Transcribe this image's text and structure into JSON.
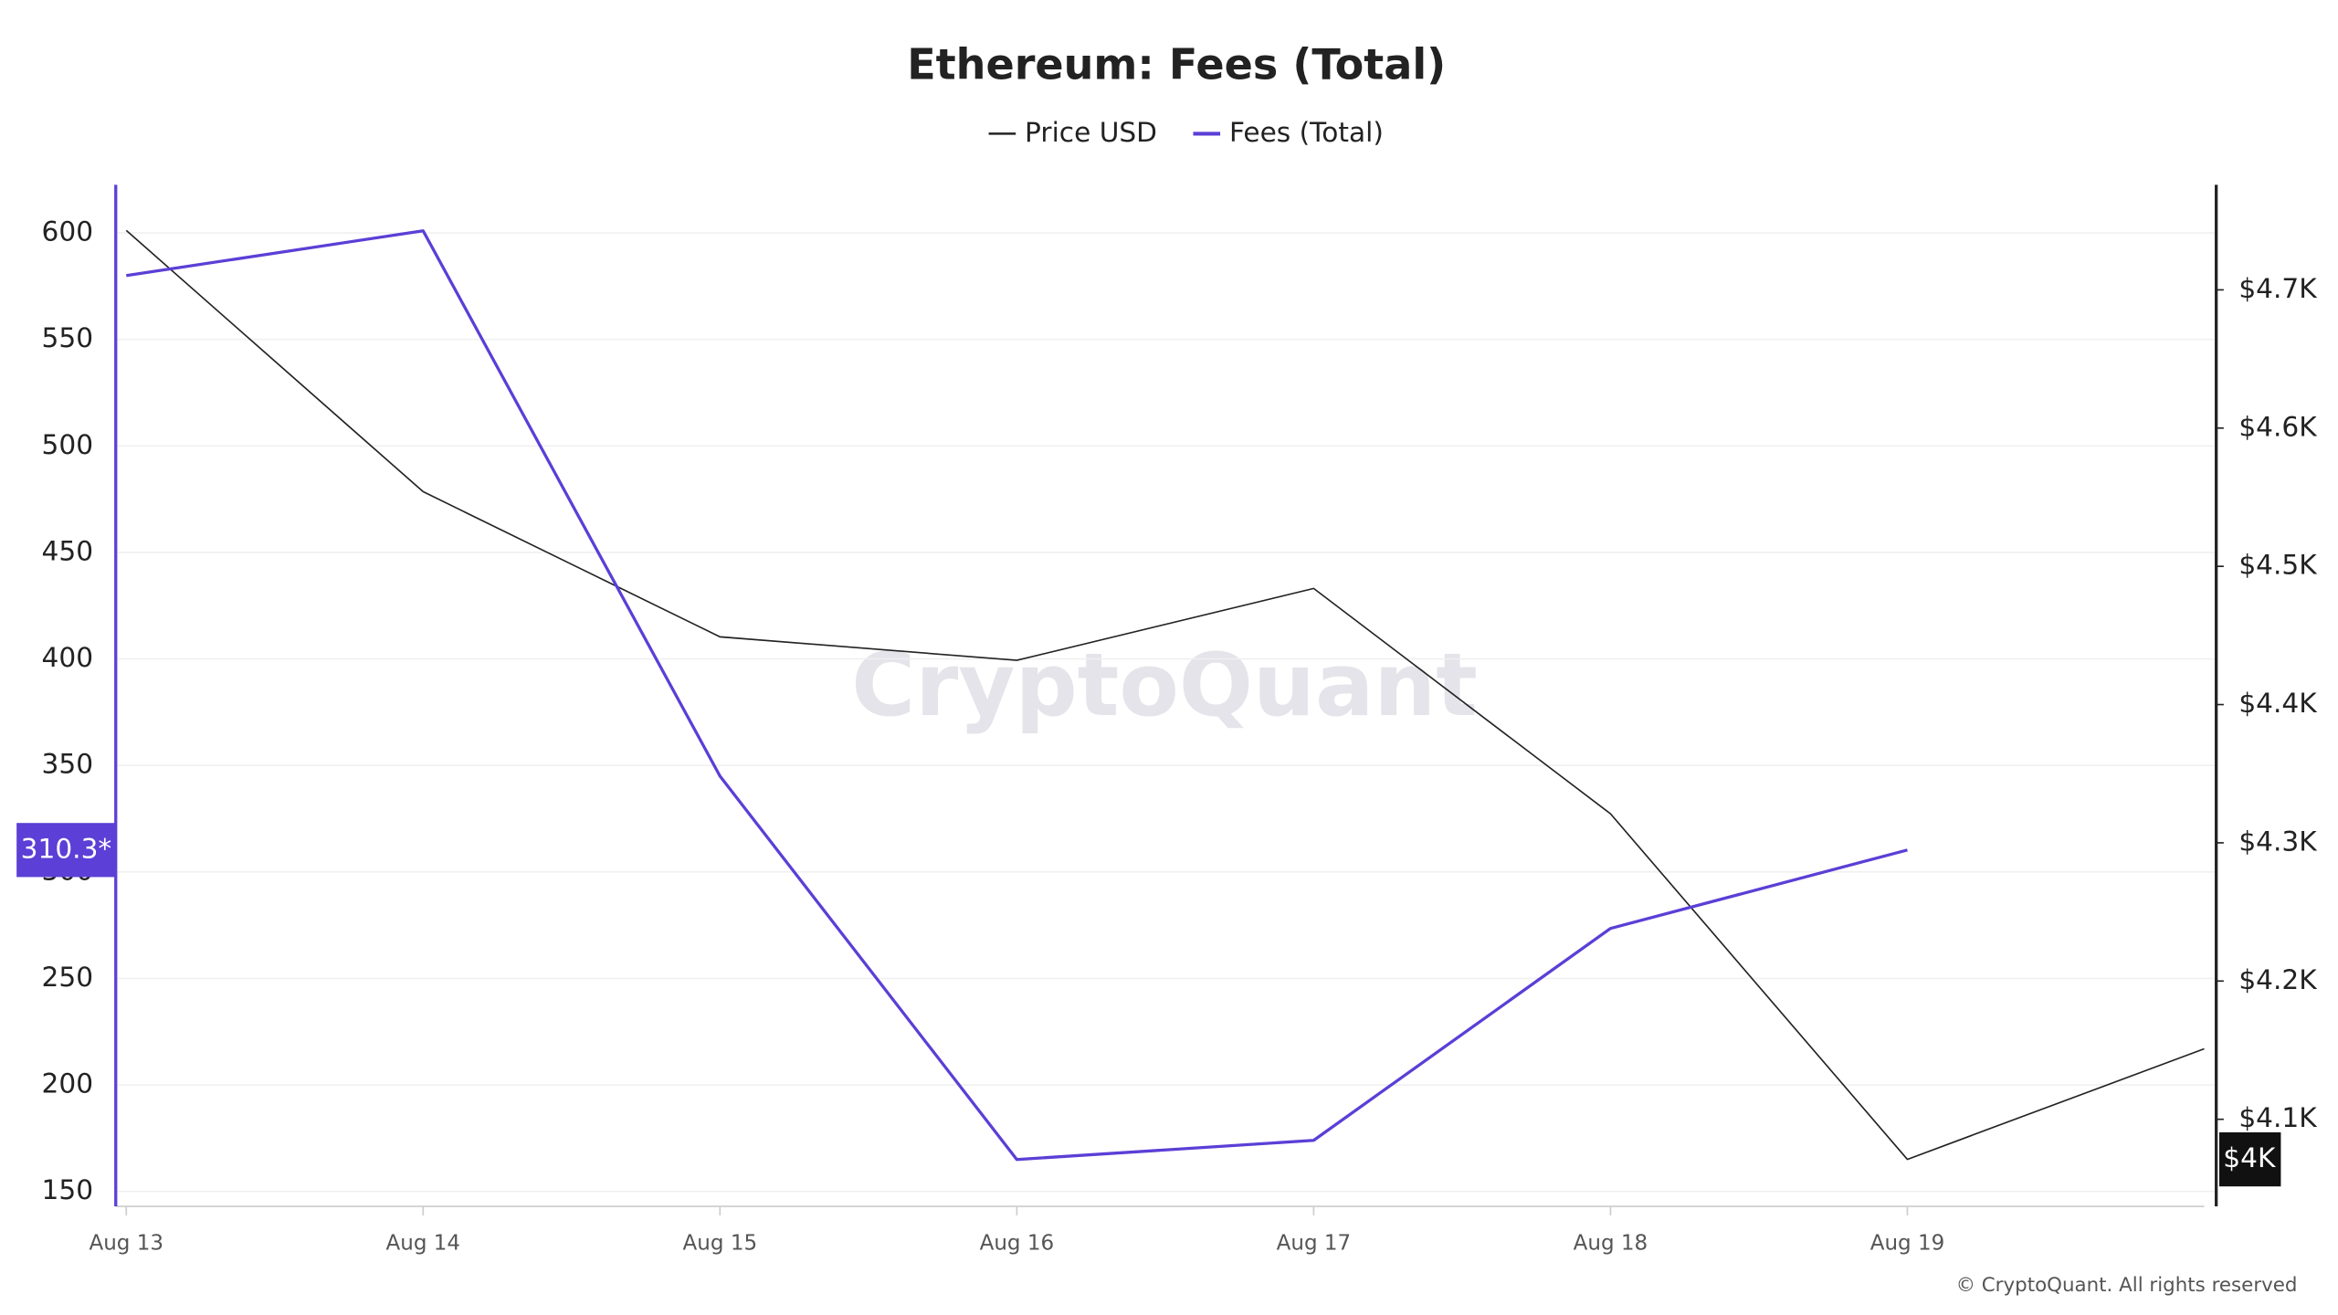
{
  "chart_data": {
    "type": "line",
    "title": "Ethereum: Fees (Total)",
    "categories": [
      "Aug 13",
      "Aug 14",
      "Aug 15",
      "Aug 16",
      "Aug 17",
      "Aug 18",
      "Aug 19",
      null
    ],
    "series": [
      {
        "name": "Price USD",
        "color": "#222222",
        "axis": "y2",
        "values": [
          4743,
          4554,
          4449,
          4432,
          4484,
          4321,
          4071,
          4151
        ],
        "value_labels": [
          null,
          null,
          null,
          null,
          null,
          null,
          "$4K",
          null
        ]
      },
      {
        "name": "Fees (Total)",
        "color": "#5b3fd6",
        "values": [
          580,
          601,
          345,
          165,
          174,
          273.5,
          310.3,
          null
        ],
        "value_labels": [
          null,
          null,
          null,
          null,
          null,
          null,
          "310.3*",
          null
        ]
      }
    ],
    "ylim": [
      143,
      622.6
    ],
    "yticks": [
      150,
      200,
      250,
      300,
      350,
      400,
      450,
      500,
      550,
      600
    ],
    "y2lim": [
      4037,
      4776
    ],
    "y2ticks": [
      {
        "value": 4100,
        "label": "$4.1K"
      },
      {
        "value": 4200,
        "label": "$4.2K"
      },
      {
        "value": 4300,
        "label": "$4.3K"
      },
      {
        "value": 4400,
        "label": "$4.4K"
      },
      {
        "value": 4500,
        "label": "$4.5K"
      },
      {
        "value": 4600,
        "label": "$4.6K"
      },
      {
        "value": 4700,
        "label": "$4.7K"
      }
    ],
    "grid": true,
    "legend": "top",
    "watermark": "CryptoQuant",
    "copyright": "© CryptoQuant. All rights reserved"
  }
}
